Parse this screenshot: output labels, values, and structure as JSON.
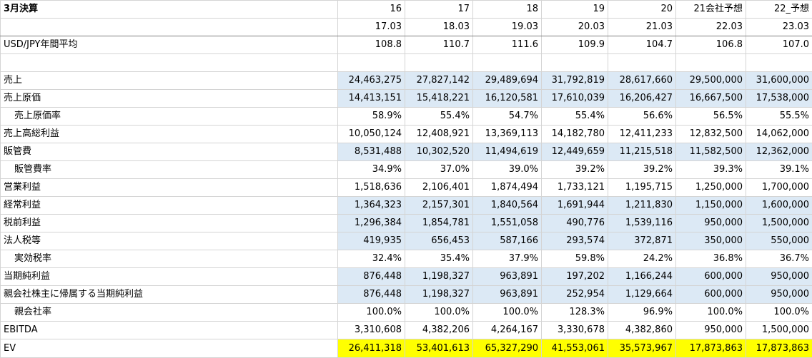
{
  "header": {
    "title": "3月決算",
    "years": [
      "16",
      "17",
      "18",
      "19",
      "20",
      "21会社予想",
      "22_予想"
    ],
    "periods": [
      "17.03",
      "18.03",
      "19.03",
      "20.03",
      "21.03",
      "22.03",
      "23.03"
    ]
  },
  "fx": {
    "label": "USD/JPY年間平均",
    "values": [
      "108.8",
      "110.7",
      "111.6",
      "109.9",
      "104.7",
      "106.8",
      "107.0"
    ]
  },
  "colors": {
    "highlight_blue": "#dce9f5",
    "highlight_yellow": "#ffff00",
    "grid": "#d4d4d4"
  },
  "rows": [
    {
      "label": "売上",
      "values": [
        "24,463,275",
        "27,827,142",
        "29,489,694",
        "31,792,819",
        "28,617,660",
        "29,500,000",
        "31,600,000"
      ]
    },
    {
      "label": "売上原価",
      "values": [
        "14,413,151",
        "15,418,221",
        "16,120,581",
        "17,610,039",
        "16,206,427",
        "16,667,500",
        "17,538,000"
      ]
    },
    {
      "label": "売上原価率",
      "values": [
        "58.9%",
        "55.4%",
        "54.7%",
        "55.4%",
        "56.6%",
        "56.5%",
        "55.5%"
      ]
    },
    {
      "label": "売上高総利益",
      "values": [
        "10,050,124",
        "12,408,921",
        "13,369,113",
        "14,182,780",
        "12,411,233",
        "12,832,500",
        "14,062,000"
      ]
    },
    {
      "label": "販管費",
      "values": [
        "8,531,488",
        "10,302,520",
        "11,494,619",
        "12,449,659",
        "11,215,518",
        "11,582,500",
        "12,362,000"
      ]
    },
    {
      "label": "販管費率",
      "values": [
        "34.9%",
        "37.0%",
        "39.0%",
        "39.2%",
        "39.2%",
        "39.3%",
        "39.1%"
      ]
    },
    {
      "label": "営業利益",
      "values": [
        "1,518,636",
        "2,106,401",
        "1,874,494",
        "1,733,121",
        "1,195,715",
        "1,250,000",
        "1,700,000"
      ]
    },
    {
      "label": "経常利益",
      "values": [
        "1,364,323",
        "2,157,301",
        "1,840,564",
        "1,691,944",
        "1,211,830",
        "1,150,000",
        "1,600,000"
      ]
    },
    {
      "label": "税前利益",
      "values": [
        "1,296,384",
        "1,854,781",
        "1,551,058",
        "490,776",
        "1,539,116",
        "950,000",
        "1,500,000"
      ]
    },
    {
      "label": "法人税等",
      "values": [
        "419,935",
        "656,453",
        "587,166",
        "293,574",
        "372,871",
        "350,000",
        "550,000"
      ]
    },
    {
      "label": "実効税率",
      "values": [
        "32.4%",
        "35.4%",
        "37.9%",
        "59.8%",
        "24.2%",
        "36.8%",
        "36.7%"
      ]
    },
    {
      "label": "当期純利益",
      "values": [
        "876,448",
        "1,198,327",
        "963,891",
        "197,202",
        "1,166,244",
        "600,000",
        "950,000"
      ]
    },
    {
      "label": "親会社株主に帰属する当期純利益",
      "values": [
        "876,448",
        "1,198,327",
        "963,891",
        "252,954",
        "1,129,664",
        "600,000",
        "950,000"
      ]
    },
    {
      "label": "親会社率",
      "values": [
        "100.0%",
        "100.0%",
        "100.0%",
        "128.3%",
        "96.9%",
        "100.0%",
        "100.0%"
      ]
    },
    {
      "label": "EBITDA",
      "values": [
        "3,310,608",
        "4,382,206",
        "4,264,167",
        "3,330,678",
        "4,382,860",
        "950,000",
        "1,500,000"
      ]
    },
    {
      "label": "EV",
      "values": [
        "26,411,318",
        "53,401,613",
        "65,327,290",
        "41,553,061",
        "35,573,967",
        "17,873,863",
        "17,873,863"
      ]
    }
  ]
}
